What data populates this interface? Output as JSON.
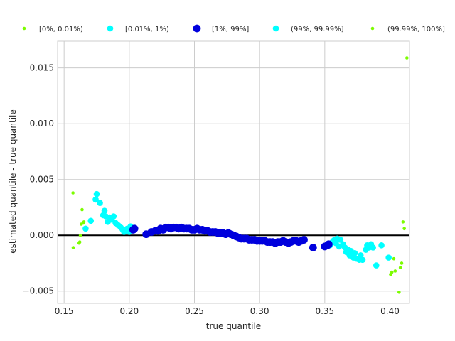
{
  "chart_data": {
    "type": "scatter",
    "title": "",
    "xlabel": "true quantile",
    "ylabel": "estimated quantile - true quantile",
    "xlim": [
      0.145,
      0.415
    ],
    "ylim": [
      -0.0061,
      0.0174
    ],
    "xticks": [
      0.15,
      0.2,
      0.25,
      0.3,
      0.35,
      0.4
    ],
    "xtick_labels": [
      "0.15",
      "0.20",
      "0.25",
      "0.30",
      "0.35",
      "0.40"
    ],
    "yticks": [
      -0.005,
      0.0,
      0.005,
      0.01,
      0.015
    ],
    "ytick_labels": [
      "−0.005",
      "0.000",
      "0.005",
      "0.010",
      "0.015"
    ],
    "grid": true,
    "legend_position": "top",
    "reference_line_y": 0,
    "series": [
      {
        "name": "[0%, 0.01%)",
        "color": "#7cfc00",
        "marker_size": "small",
        "points": [
          [
            0.1568,
            0.0038
          ],
          [
            0.157,
            -0.0011
          ],
          [
            0.1615,
            -0.0007
          ],
          [
            0.162,
            -0.0006
          ],
          [
            0.1625,
            0.0
          ],
          [
            0.1632,
            0.001
          ],
          [
            0.1638,
            0.0023
          ],
          [
            0.1648,
            0.0011
          ],
          [
            0.1652,
            0.0012
          ],
          [
            0.4005,
            -0.0035
          ],
          [
            0.4015,
            -0.0033
          ],
          [
            0.403,
            -0.0021
          ],
          [
            0.404,
            -0.0032
          ],
          [
            0.407,
            -0.0051
          ],
          [
            0.408,
            -0.0029
          ],
          [
            0.409,
            -0.0025
          ],
          [
            0.41,
            0.0012
          ],
          [
            0.411,
            0.0006
          ],
          [
            0.413,
            0.0159
          ]
        ]
      },
      {
        "name": "[0.01%, 1%)",
        "color": "#00ffff",
        "marker_size": "medium",
        "points": [
          [
            0.1665,
            0.0006
          ],
          [
            0.1705,
            0.0013
          ],
          [
            0.1742,
            0.0032
          ],
          [
            0.175,
            0.0037
          ],
          [
            0.1775,
            0.0029
          ],
          [
            0.18,
            0.0018
          ],
          [
            0.181,
            0.0022
          ],
          [
            0.182,
            0.0017
          ],
          [
            0.1835,
            0.0012
          ],
          [
            0.185,
            0.0016
          ],
          [
            0.1865,
            0.0014
          ],
          [
            0.188,
            0.0017
          ],
          [
            0.1895,
            0.0011
          ],
          [
            0.1915,
            0.0009
          ],
          [
            0.1935,
            0.0007
          ],
          [
            0.195,
            0.0005
          ],
          [
            0.196,
            0.0003
          ],
          [
            0.197,
            0.0004
          ],
          [
            0.1985,
            0.0006
          ],
          [
            0.2,
            0.0003
          ],
          [
            0.201,
            0.0008
          ],
          [
            0.202,
            0.0005
          ],
          [
            0.354,
            -0.0009
          ],
          [
            0.355,
            -0.0007
          ],
          [
            0.3565,
            -0.0005
          ],
          [
            0.3575,
            -0.0004
          ],
          [
            0.3585,
            -0.0007
          ],
          [
            0.3595,
            -0.0003
          ],
          [
            0.361,
            -0.001
          ],
          [
            0.362,
            -0.0004
          ],
          [
            0.364,
            -0.0008
          ],
          [
            0.3655,
            -0.0011
          ],
          [
            0.3665,
            -0.0015
          ],
          [
            0.368,
            -0.0013
          ],
          [
            0.369,
            -0.0018
          ],
          [
            0.37,
            -0.0014
          ],
          [
            0.372,
            -0.002
          ],
          [
            0.373,
            -0.0016
          ],
          [
            0.3745,
            -0.0021
          ],
          [
            0.3765,
            -0.0022
          ],
          [
            0.3775,
            -0.0018
          ],
          [
            0.379,
            -0.0022
          ],
          [
            0.3815,
            -0.0013
          ],
          [
            0.3825,
            -0.0009
          ],
          [
            0.384,
            -0.0011
          ],
          [
            0.3855,
            -0.0008
          ],
          [
            0.387,
            -0.0011
          ],
          [
            0.3895,
            -0.0027
          ],
          [
            0.3935,
            -0.0009
          ],
          [
            0.399,
            -0.002
          ]
        ]
      },
      {
        "name": "[1%, 99%]",
        "color": "#0000dd",
        "marker_size": "large",
        "points": [
          [
            0.203,
            0.0005
          ],
          [
            0.204,
            0.0006
          ],
          [
            0.213,
            0.0001
          ],
          [
            0.217,
            0.0003
          ],
          [
            0.22,
            0.0004
          ],
          [
            0.222,
            0.0004
          ],
          [
            0.224,
            0.0006
          ],
          [
            0.226,
            0.0005
          ],
          [
            0.228,
            0.0007
          ],
          [
            0.23,
            0.0007
          ],
          [
            0.232,
            0.0006
          ],
          [
            0.234,
            0.0007
          ],
          [
            0.236,
            0.0007
          ],
          [
            0.238,
            0.0006
          ],
          [
            0.24,
            0.0007
          ],
          [
            0.242,
            0.0006
          ],
          [
            0.244,
            0.0006
          ],
          [
            0.246,
            0.0006
          ],
          [
            0.248,
            0.0005
          ],
          [
            0.25,
            0.0005
          ],
          [
            0.252,
            0.0006
          ],
          [
            0.254,
            0.0005
          ],
          [
            0.256,
            0.0005
          ],
          [
            0.258,
            0.0004
          ],
          [
            0.26,
            0.0004
          ],
          [
            0.262,
            0.0003
          ],
          [
            0.264,
            0.0003
          ],
          [
            0.266,
            0.0003
          ],
          [
            0.268,
            0.0002
          ],
          [
            0.27,
            0.0002
          ],
          [
            0.272,
            0.0002
          ],
          [
            0.274,
            0.0001
          ],
          [
            0.276,
            0.0002
          ],
          [
            0.278,
            0.0001
          ],
          [
            0.28,
            0.0
          ],
          [
            0.282,
            -0.0001
          ],
          [
            0.284,
            -0.0002
          ],
          [
            0.286,
            -0.0003
          ],
          [
            0.288,
            -0.0003
          ],
          [
            0.29,
            -0.0003
          ],
          [
            0.292,
            -0.0004
          ],
          [
            0.294,
            -0.0004
          ],
          [
            0.296,
            -0.0004
          ],
          [
            0.298,
            -0.0005
          ],
          [
            0.3,
            -0.0005
          ],
          [
            0.302,
            -0.0005
          ],
          [
            0.304,
            -0.0005
          ],
          [
            0.306,
            -0.0006
          ],
          [
            0.308,
            -0.0006
          ],
          [
            0.31,
            -0.0006
          ],
          [
            0.312,
            -0.0007
          ],
          [
            0.314,
            -0.0006
          ],
          [
            0.316,
            -0.0006
          ],
          [
            0.318,
            -0.0005
          ],
          [
            0.32,
            -0.0006
          ],
          [
            0.322,
            -0.0007
          ],
          [
            0.324,
            -0.0006
          ],
          [
            0.326,
            -0.0005
          ],
          [
            0.328,
            -0.0005
          ],
          [
            0.33,
            -0.0006
          ],
          [
            0.332,
            -0.0005
          ],
          [
            0.334,
            -0.0004
          ],
          [
            0.341,
            -0.0011
          ],
          [
            0.35,
            -0.001
          ],
          [
            0.352,
            -0.0009
          ],
          [
            0.353,
            -0.0008
          ]
        ]
      },
      {
        "name": "(99%, 99.99%]",
        "color": "#00ffff",
        "marker_size": "medium",
        "points": []
      },
      {
        "name": "(99.99%, 100%]",
        "color": "#7cfc00",
        "marker_size": "small",
        "points": []
      }
    ]
  }
}
